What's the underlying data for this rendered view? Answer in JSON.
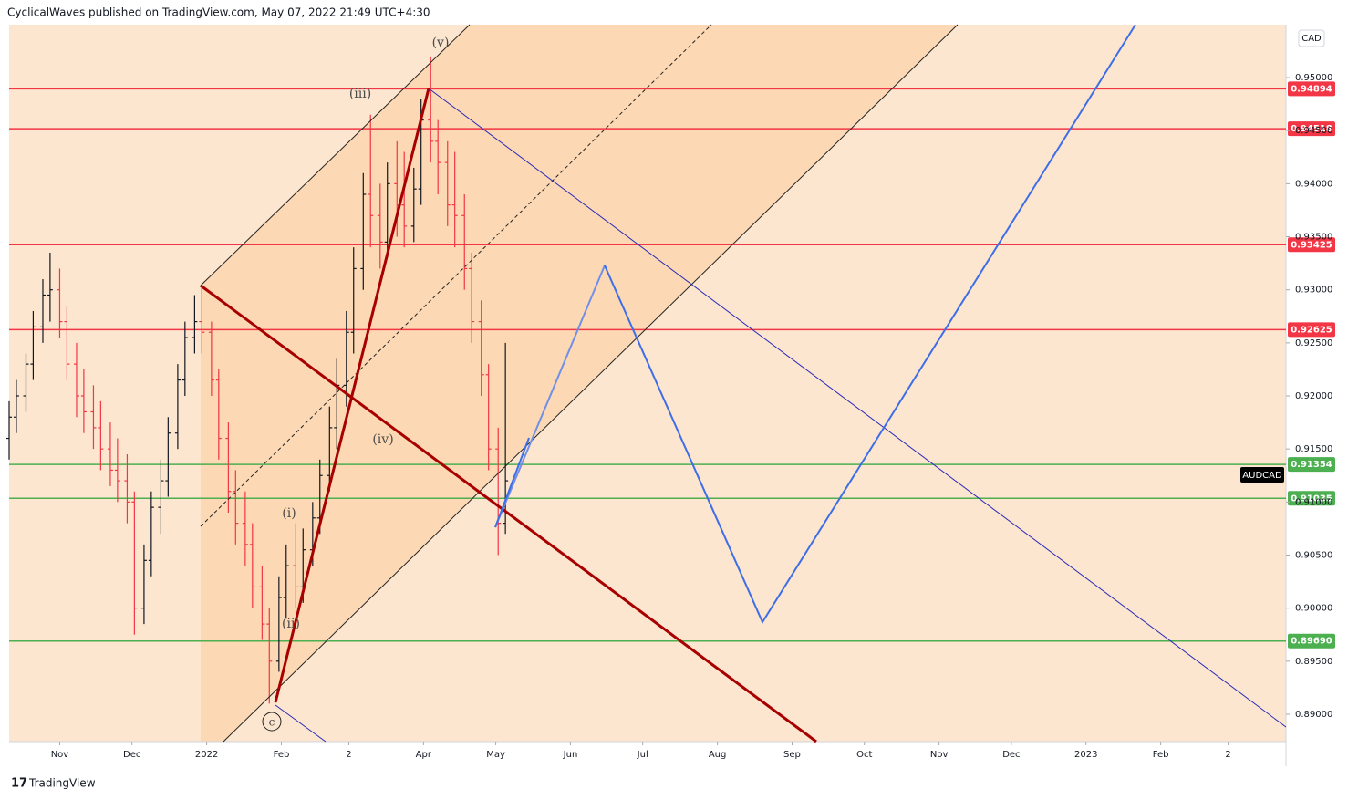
{
  "header": {
    "text": "CyclicalWaves published on TradingView.com, May 07, 2022 21:49 UTC+4:30"
  },
  "footer": {
    "logo": "TradingView"
  },
  "chart_data": {
    "type": "ohlc",
    "symbol": "AUDCAD",
    "currency": "CAD",
    "up_color": "#131722",
    "down_color": "#f23645",
    "x": [
      "2021-10-11",
      "2021-10-14",
      "2021-10-18",
      "2021-10-21",
      "2021-10-25",
      "2021-10-28",
      "2021-11-01",
      "2021-11-04",
      "2021-11-08",
      "2021-11-11",
      "2021-11-15",
      "2021-11-18",
      "2021-11-22",
      "2021-11-25",
      "2021-11-29",
      "2021-12-02",
      "2021-12-06",
      "2021-12-09",
      "2021-12-13",
      "2021-12-16",
      "2021-12-20",
      "2021-12-23",
      "2021-12-27",
      "2021-12-30",
      "2022-01-03",
      "2022-01-06",
      "2022-01-10",
      "2022-01-13",
      "2022-01-17",
      "2022-01-20",
      "2022-01-24",
      "2022-01-27",
      "2022-01-31",
      "2022-02-03",
      "2022-02-07",
      "2022-02-10",
      "2022-02-14",
      "2022-02-17",
      "2022-02-21",
      "2022-02-24",
      "2022-02-28",
      "2022-03-03",
      "2022-03-07",
      "2022-03-10",
      "2022-03-14",
      "2022-03-17",
      "2022-03-21",
      "2022-03-24",
      "2022-03-28",
      "2022-03-31",
      "2022-04-04",
      "2022-04-07",
      "2022-04-11",
      "2022-04-14",
      "2022-04-18",
      "2022-04-21",
      "2022-04-25",
      "2022-04-28",
      "2022-05-02",
      "2022-05-05"
    ],
    "open": [
      0.916,
      0.918,
      0.92,
      0.923,
      0.9265,
      0.9295,
      0.93,
      0.927,
      0.923,
      0.92,
      0.9185,
      0.917,
      0.915,
      0.913,
      0.912,
      0.91,
      0.9,
      0.9045,
      0.9095,
      0.912,
      0.9165,
      0.9215,
      0.9255,
      0.927,
      0.926,
      0.9215,
      0.916,
      0.911,
      0.908,
      0.906,
      0.902,
      0.8985,
      0.895,
      0.901,
      0.904,
      0.902,
      0.9055,
      0.9085,
      0.9125,
      0.917,
      0.921,
      0.926,
      0.932,
      0.939,
      0.937,
      0.9345,
      0.94,
      0.938,
      0.936,
      0.9395,
      0.946,
      0.944,
      0.942,
      0.938,
      0.937,
      0.932,
      0.927,
      0.922,
      0.915,
      0.908
    ],
    "high": [
      0.9195,
      0.9215,
      0.924,
      0.928,
      0.931,
      0.9335,
      0.932,
      0.9285,
      0.925,
      0.9225,
      0.921,
      0.9195,
      0.9175,
      0.916,
      0.9145,
      0.911,
      0.906,
      0.911,
      0.914,
      0.918,
      0.923,
      0.927,
      0.9295,
      0.9305,
      0.927,
      0.9225,
      0.9175,
      0.913,
      0.911,
      0.908,
      0.904,
      0.9,
      0.903,
      0.906,
      0.908,
      0.9075,
      0.91,
      0.914,
      0.919,
      0.9235,
      0.928,
      0.934,
      0.941,
      0.9465,
      0.94,
      0.942,
      0.944,
      0.943,
      0.9415,
      0.948,
      0.952,
      0.946,
      0.944,
      0.943,
      0.939,
      0.9335,
      0.929,
      0.923,
      0.917,
      0.925
    ],
    "low": [
      0.914,
      0.9165,
      0.9185,
      0.9215,
      0.925,
      0.927,
      0.9255,
      0.9215,
      0.918,
      0.9165,
      0.915,
      0.913,
      0.9115,
      0.91,
      0.908,
      0.8975,
      0.8985,
      0.903,
      0.907,
      0.9105,
      0.915,
      0.92,
      0.924,
      0.924,
      0.92,
      0.914,
      0.909,
      0.906,
      0.904,
      0.9,
      0.897,
      0.891,
      0.894,
      0.899,
      0.9,
      0.9005,
      0.904,
      0.907,
      0.911,
      0.915,
      0.919,
      0.924,
      0.93,
      0.934,
      0.932,
      0.933,
      0.935,
      0.934,
      0.9345,
      0.938,
      0.942,
      0.939,
      0.936,
      0.934,
      0.93,
      0.925,
      0.92,
      0.913,
      0.905,
      0.907
    ],
    "close": [
      0.918,
      0.92,
      0.923,
      0.9265,
      0.9295,
      0.93,
      0.927,
      0.923,
      0.92,
      0.9185,
      0.917,
      0.915,
      0.913,
      0.912,
      0.91,
      0.9,
      0.9045,
      0.9095,
      0.912,
      0.9165,
      0.9215,
      0.9255,
      0.927,
      0.926,
      0.9215,
      0.916,
      0.911,
      0.908,
      0.906,
      0.902,
      0.8985,
      0.895,
      0.901,
      0.904,
      0.902,
      0.9055,
      0.9085,
      0.9125,
      0.917,
      0.921,
      0.926,
      0.932,
      0.939,
      0.937,
      0.9345,
      0.94,
      0.938,
      0.936,
      0.9395,
      0.946,
      0.944,
      0.942,
      0.938,
      0.937,
      0.932,
      0.927,
      0.922,
      0.915,
      0.908,
      0.912
    ],
    "xlim": [
      "2021-10-11",
      "2023-03-25"
    ],
    "xticks": [
      {
        "value": "2021-11-01",
        "label": "Nov"
      },
      {
        "value": "2021-12-01",
        "label": "Dec"
      },
      {
        "value": "2022-01-01",
        "label": "2022"
      },
      {
        "value": "2022-02-01",
        "label": "Feb"
      },
      {
        "value": "2022-03-01",
        "label": "2"
      },
      {
        "value": "2022-04-01",
        "label": "Apr"
      },
      {
        "value": "2022-05-01",
        "label": "May"
      },
      {
        "value": "2022-06-01",
        "label": "Jun"
      },
      {
        "value": "2022-07-01",
        "label": "Jul"
      },
      {
        "value": "2022-08-01",
        "label": "Aug"
      },
      {
        "value": "2022-09-01",
        "label": "Sep"
      },
      {
        "value": "2022-10-01",
        "label": "Oct"
      },
      {
        "value": "2022-11-01",
        "label": "Nov"
      },
      {
        "value": "2022-12-01",
        "label": "Dec"
      },
      {
        "value": "2023-01-01",
        "label": "2023"
      },
      {
        "value": "2023-02-01",
        "label": "Feb"
      },
      {
        "value": "2023-03-01",
        "label": "2"
      }
    ],
    "ylim": [
      0.88742,
      0.95499
    ],
    "yticks": [
      {
        "value": 0.89,
        "label": "0.89000"
      },
      {
        "value": 0.895,
        "label": "0.89500"
      },
      {
        "value": 0.9,
        "label": "0.90000"
      },
      {
        "value": 0.905,
        "label": "0.90500"
      },
      {
        "value": 0.91,
        "label": "0.91000"
      },
      {
        "value": 0.915,
        "label": "0.91500"
      },
      {
        "value": 0.92,
        "label": "0.92000"
      },
      {
        "value": 0.925,
        "label": "0.92500"
      },
      {
        "value": 0.93,
        "label": "0.93000"
      },
      {
        "value": 0.935,
        "label": "0.93500"
      },
      {
        "value": 0.94,
        "label": "0.94000"
      },
      {
        "value": 0.945,
        "label": "0.94500"
      },
      {
        "value": 0.95,
        "label": "0.95000"
      }
    ],
    "levels": [
      {
        "value": 0.94894,
        "label": "0.94894",
        "color": "#f23645"
      },
      {
        "value": 0.94518,
        "label": "0.94518",
        "color": "#f23645"
      },
      {
        "value": 0.93425,
        "label": "0.93425",
        "color": "#f23645"
      },
      {
        "value": 0.92625,
        "label": "0.92625",
        "color": "#f23645"
      },
      {
        "value": 0.91354,
        "label": "0.91354",
        "color": "#4caf50"
      },
      {
        "value": 0.91035,
        "label": "0.91035",
        "color": "#4caf50"
      },
      {
        "value": 0.8969,
        "label": "0.89690",
        "color": "#4caf50"
      }
    ],
    "annotations": [
      "(v)",
      "(iii)",
      "(iv)",
      "(i)",
      "(ii)",
      "c"
    ]
  }
}
